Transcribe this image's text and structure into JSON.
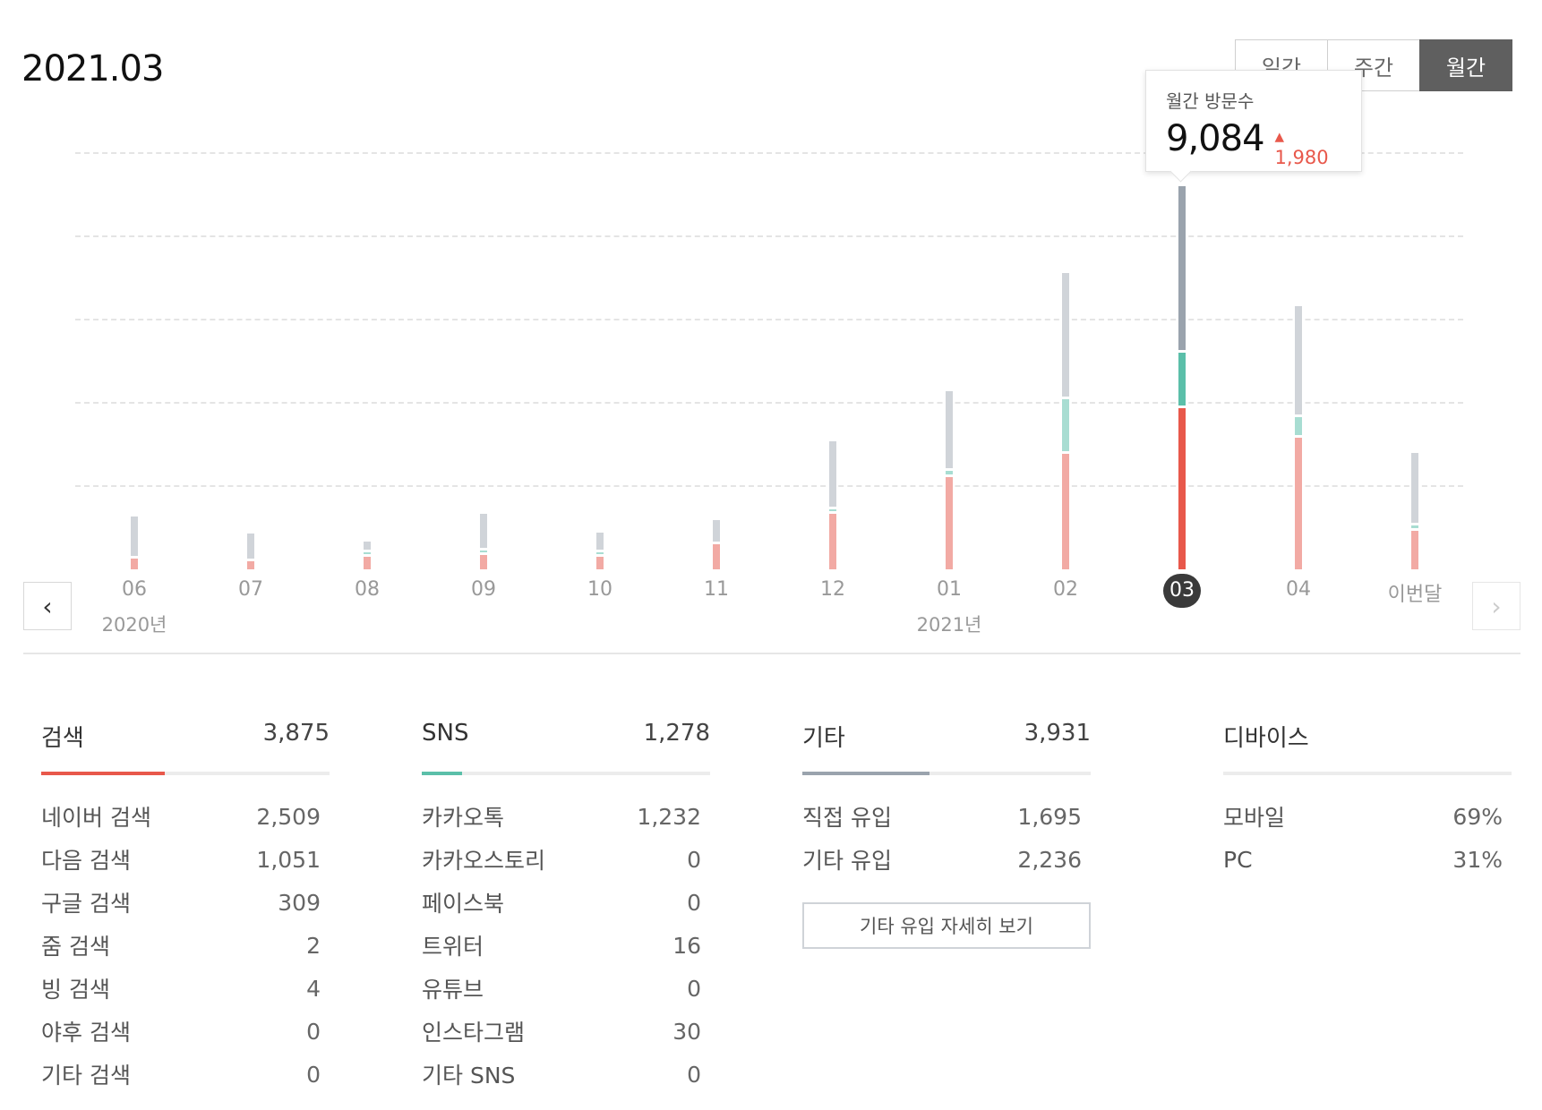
{
  "period_title": "2021.03",
  "tabs": [
    "일간",
    "주간",
    "월간"
  ],
  "active_tab": "월간",
  "tooltip": {
    "label": "월간 방문수",
    "value": "9,084",
    "delta": "1,980"
  },
  "chart_data": {
    "type": "bar",
    "stacked": true,
    "categories": [
      "06",
      "07",
      "08",
      "09",
      "10",
      "11",
      "12",
      "01",
      "02",
      "03",
      "04",
      "이번달"
    ],
    "year_labels": [
      "2020년",
      "2021년"
    ],
    "selected": "03",
    "series": [
      {
        "color": "#f2aaa4",
        "selected_color": "#e8584b",
        "values": [
          250,
          200,
          300,
          350,
          300,
          600,
          1330,
          2220,
          2780,
          3875,
          3160,
          920
        ]
      },
      {
        "color": "#a8ddd2",
        "selected_color": "#5bbfa9",
        "values": [
          0,
          0,
          20,
          20,
          50,
          0,
          40,
          90,
          1250,
          1278,
          430,
          60
        ]
      },
      {
        "color": "#d0d4d9",
        "selected_color": "#9aa3ad",
        "values": [
          950,
          610,
          200,
          810,
          400,
          520,
          1580,
          1860,
          2970,
          3931,
          2600,
          1670
        ]
      }
    ],
    "grid": true
  },
  "sections": [
    {
      "title": "검색",
      "total": "3,875",
      "color": "#e8584b",
      "share": 0.43,
      "items": [
        {
          "label": "네이버 검색",
          "value": "2,509"
        },
        {
          "label": "다음 검색",
          "value": "1,051"
        },
        {
          "label": "구글 검색",
          "value": "309"
        },
        {
          "label": "줌 검색",
          "value": "2"
        },
        {
          "label": "빙 검색",
          "value": "4"
        },
        {
          "label": "야후 검색",
          "value": "0"
        },
        {
          "label": "기타 검색",
          "value": "0"
        }
      ]
    },
    {
      "title": "SNS",
      "total": "1,278",
      "color": "#5bbfa9",
      "share": 0.14,
      "items": [
        {
          "label": "카카오톡",
          "value": "1,232"
        },
        {
          "label": "카카오스토리",
          "value": "0"
        },
        {
          "label": "페이스북",
          "value": "0"
        },
        {
          "label": "트위터",
          "value": "16"
        },
        {
          "label": "유튜브",
          "value": "0"
        },
        {
          "label": "인스타그램",
          "value": "30"
        },
        {
          "label": "기타 SNS",
          "value": "0"
        }
      ]
    },
    {
      "title": "기타",
      "total": "3,931",
      "color": "#9aa3ad",
      "share": 0.44,
      "items": [
        {
          "label": "직접 유입",
          "value": "1,695"
        },
        {
          "label": "기타 유입",
          "value": "2,236"
        }
      ],
      "button": "기타 유입 자세히 보기"
    },
    {
      "title": "디바이스",
      "total": "",
      "color": "#ececec",
      "share": 0,
      "items": [
        {
          "label": "모바일",
          "value": "69%"
        },
        {
          "label": "PC",
          "value": "31%"
        }
      ]
    }
  ]
}
